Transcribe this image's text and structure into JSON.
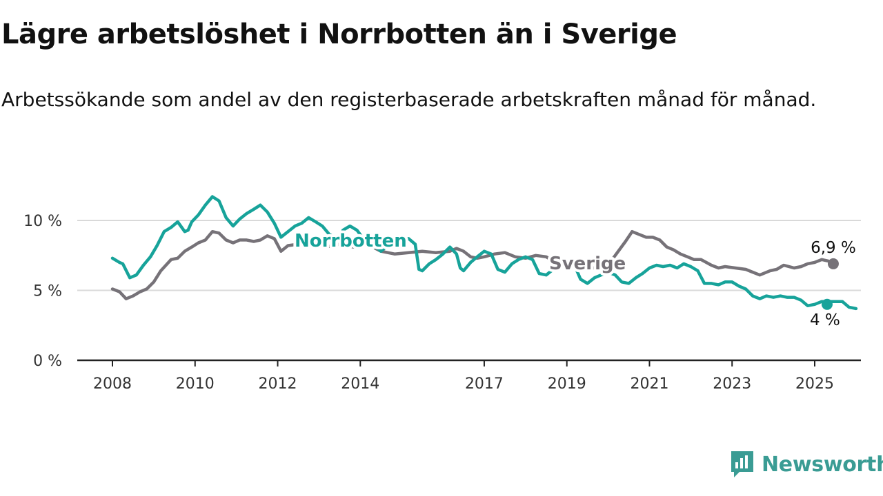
{
  "header": {
    "title": "Lägre arbetslöshet i Norrbotten än i Sverige",
    "subtitle": "Arbetssökande som andel av den registerbaserade arbetskraften månad för månad."
  },
  "brand": {
    "name": "Newsworthy"
  },
  "chart_data": {
    "type": "line",
    "title": "Lägre arbetslöshet i Norrbotten än i Sverige",
    "subtitle": "Arbetssökande som andel av den registerbaserade arbetskraften månad för månad.",
    "xlabel": "",
    "ylabel": "",
    "xlim": [
      2007.6,
      2026.1
    ],
    "ylim": [
      0,
      10
    ],
    "x_ticks": [
      2008,
      2010,
      2012,
      2014,
      2017,
      2019,
      2021,
      2023,
      2025
    ],
    "x_tick_labels": [
      "2008",
      "2010",
      "2012",
      "2014",
      "2017",
      "2019",
      "2021",
      "2023",
      "2025"
    ],
    "y_ticks": [
      0,
      5,
      10
    ],
    "y_tick_labels": [
      "0 %",
      "5 %",
      "10 %"
    ],
    "grid": true,
    "legend": "inline labels",
    "series": [
      {
        "name": "Sverige",
        "color": "#767278",
        "end_label": "6,9 %",
        "points": [
          [
            2008.0,
            5.1
          ],
          [
            2008.17,
            4.9
          ],
          [
            2008.33,
            4.4
          ],
          [
            2008.5,
            4.6
          ],
          [
            2008.67,
            4.9
          ],
          [
            2008.83,
            5.1
          ],
          [
            2009.0,
            5.6
          ],
          [
            2009.17,
            6.4
          ],
          [
            2009.42,
            7.2
          ],
          [
            2009.58,
            7.3
          ],
          [
            2009.75,
            7.8
          ],
          [
            2009.92,
            8.1
          ],
          [
            2010.08,
            8.4
          ],
          [
            2010.25,
            8.6
          ],
          [
            2010.42,
            9.2
          ],
          [
            2010.58,
            9.1
          ],
          [
            2010.75,
            8.6
          ],
          [
            2010.92,
            8.4
          ],
          [
            2011.08,
            8.6
          ],
          [
            2011.25,
            8.6
          ],
          [
            2011.42,
            8.5
          ],
          [
            2011.58,
            8.6
          ],
          [
            2011.75,
            8.9
          ],
          [
            2011.92,
            8.7
          ],
          [
            2012.08,
            7.8
          ],
          [
            2012.25,
            8.2
          ],
          [
            2012.5,
            8.3
          ],
          [
            2012.75,
            8.6
          ],
          [
            2012.92,
            8.7
          ],
          [
            2013.17,
            8.1
          ],
          [
            2013.5,
            8.3
          ],
          [
            2013.83,
            8.1
          ],
          [
            2014.17,
            8.3
          ],
          [
            2014.5,
            7.8
          ],
          [
            2014.83,
            7.6
          ],
          [
            2015.17,
            7.7
          ],
          [
            2015.5,
            7.8
          ],
          [
            2015.83,
            7.7
          ],
          [
            2016.17,
            7.8
          ],
          [
            2016.33,
            8.0
          ],
          [
            2016.5,
            7.8
          ],
          [
            2016.67,
            7.4
          ],
          [
            2016.83,
            7.3
          ],
          [
            2017.0,
            7.4
          ],
          [
            2017.25,
            7.6
          ],
          [
            2017.5,
            7.7
          ],
          [
            2017.75,
            7.4
          ],
          [
            2018.0,
            7.3
          ],
          [
            2018.25,
            7.5
          ],
          [
            2018.5,
            7.4
          ],
          [
            2018.67,
            7.1
          ],
          [
            2018.83,
            6.9
          ],
          [
            2019.0,
            7.0
          ],
          [
            2019.25,
            6.8
          ],
          [
            2019.5,
            6.6
          ],
          [
            2019.75,
            6.6
          ],
          [
            2020.0,
            6.8
          ],
          [
            2020.17,
            7.5
          ],
          [
            2020.42,
            8.5
          ],
          [
            2020.58,
            9.2
          ],
          [
            2020.75,
            9.0
          ],
          [
            2020.92,
            8.8
          ],
          [
            2021.08,
            8.8
          ],
          [
            2021.25,
            8.6
          ],
          [
            2021.42,
            8.1
          ],
          [
            2021.58,
            7.9
          ],
          [
            2021.75,
            7.6
          ],
          [
            2021.92,
            7.4
          ],
          [
            2022.08,
            7.2
          ],
          [
            2022.25,
            7.2
          ],
          [
            2022.5,
            6.8
          ],
          [
            2022.67,
            6.6
          ],
          [
            2022.83,
            6.7
          ],
          [
            2023.08,
            6.6
          ],
          [
            2023.33,
            6.5
          ],
          [
            2023.5,
            6.3
          ],
          [
            2023.67,
            6.1
          ],
          [
            2023.92,
            6.4
          ],
          [
            2024.08,
            6.5
          ],
          [
            2024.25,
            6.8
          ],
          [
            2024.5,
            6.6
          ],
          [
            2024.67,
            6.7
          ],
          [
            2024.83,
            6.9
          ],
          [
            2025.0,
            7.0
          ],
          [
            2025.17,
            7.2
          ],
          [
            2025.33,
            7.1
          ],
          [
            2025.45,
            6.9
          ]
        ]
      },
      {
        "name": "Norrbotten",
        "color": "#17a39a",
        "end_label": "4 %",
        "points": [
          [
            2008.0,
            7.3
          ],
          [
            2008.17,
            7.0
          ],
          [
            2008.25,
            6.9
          ],
          [
            2008.42,
            5.9
          ],
          [
            2008.58,
            6.1
          ],
          [
            2008.75,
            6.8
          ],
          [
            2008.92,
            7.4
          ],
          [
            2009.08,
            8.2
          ],
          [
            2009.25,
            9.2
          ],
          [
            2009.42,
            9.5
          ],
          [
            2009.58,
            9.9
          ],
          [
            2009.75,
            9.2
          ],
          [
            2009.83,
            9.3
          ],
          [
            2009.92,
            9.9
          ],
          [
            2010.08,
            10.4
          ],
          [
            2010.25,
            11.1
          ],
          [
            2010.42,
            11.7
          ],
          [
            2010.58,
            11.4
          ],
          [
            2010.75,
            10.2
          ],
          [
            2010.92,
            9.6
          ],
          [
            2011.08,
            10.1
          ],
          [
            2011.25,
            10.5
          ],
          [
            2011.42,
            10.8
          ],
          [
            2011.58,
            11.1
          ],
          [
            2011.75,
            10.6
          ],
          [
            2011.92,
            9.8
          ],
          [
            2012.08,
            8.8
          ],
          [
            2012.25,
            9.2
          ],
          [
            2012.42,
            9.6
          ],
          [
            2012.58,
            9.8
          ],
          [
            2012.75,
            10.2
          ],
          [
            2012.92,
            9.9
          ],
          [
            2013.08,
            9.6
          ],
          [
            2013.25,
            9.0
          ],
          [
            2013.5,
            8.6
          ],
          [
            2013.58,
            9.3
          ],
          [
            2013.75,
            9.6
          ],
          [
            2013.92,
            9.3
          ],
          [
            2014.17,
            8.3
          ],
          [
            2014.42,
            8.0
          ],
          [
            2014.5,
            7.8
          ],
          [
            2014.83,
            8.6
          ],
          [
            2015.17,
            8.7
          ],
          [
            2015.33,
            8.3
          ],
          [
            2015.42,
            6.5
          ],
          [
            2015.5,
            6.4
          ],
          [
            2015.67,
            6.9
          ],
          [
            2015.83,
            7.2
          ],
          [
            2016.0,
            7.6
          ],
          [
            2016.17,
            8.1
          ],
          [
            2016.33,
            7.6
          ],
          [
            2016.42,
            6.6
          ],
          [
            2016.5,
            6.4
          ],
          [
            2016.67,
            7.0
          ],
          [
            2016.83,
            7.4
          ],
          [
            2017.0,
            7.8
          ],
          [
            2017.17,
            7.6
          ],
          [
            2017.33,
            6.5
          ],
          [
            2017.5,
            6.3
          ],
          [
            2017.67,
            6.9
          ],
          [
            2017.83,
            7.2
          ],
          [
            2018.0,
            7.4
          ],
          [
            2018.17,
            7.2
          ],
          [
            2018.33,
            6.2
          ],
          [
            2018.5,
            6.1
          ],
          [
            2018.67,
            6.5
          ],
          [
            2018.83,
            6.8
          ],
          [
            2019.0,
            7.0
          ],
          [
            2019.17,
            6.9
          ],
          [
            2019.33,
            5.8
          ],
          [
            2019.5,
            5.5
          ],
          [
            2019.67,
            5.9
          ],
          [
            2019.83,
            6.1
          ],
          [
            2020.0,
            6.3
          ],
          [
            2020.17,
            6.1
          ],
          [
            2020.33,
            5.6
          ],
          [
            2020.5,
            5.5
          ],
          [
            2020.67,
            5.9
          ],
          [
            2020.83,
            6.2
          ],
          [
            2021.0,
            6.6
          ],
          [
            2021.17,
            6.8
          ],
          [
            2021.33,
            6.7
          ],
          [
            2021.5,
            6.8
          ],
          [
            2021.67,
            6.6
          ],
          [
            2021.83,
            6.9
          ],
          [
            2022.0,
            6.7
          ],
          [
            2022.17,
            6.4
          ],
          [
            2022.33,
            5.5
          ],
          [
            2022.5,
            5.5
          ],
          [
            2022.67,
            5.4
          ],
          [
            2022.83,
            5.6
          ],
          [
            2023.0,
            5.6
          ],
          [
            2023.17,
            5.3
          ],
          [
            2023.33,
            5.1
          ],
          [
            2023.5,
            4.6
          ],
          [
            2023.67,
            4.4
          ],
          [
            2023.83,
            4.6
          ],
          [
            2024.0,
            4.5
          ],
          [
            2024.17,
            4.6
          ],
          [
            2024.33,
            4.5
          ],
          [
            2024.5,
            4.5
          ],
          [
            2024.67,
            4.3
          ],
          [
            2024.83,
            3.9
          ],
          [
            2025.0,
            4.0
          ],
          [
            2025.17,
            4.2
          ],
          [
            2025.33,
            4.2
          ],
          [
            2025.5,
            4.2
          ],
          [
            2025.67,
            4.2
          ],
          [
            2025.83,
            3.8
          ],
          [
            2026.0,
            3.7
          ]
        ]
      }
    ]
  }
}
